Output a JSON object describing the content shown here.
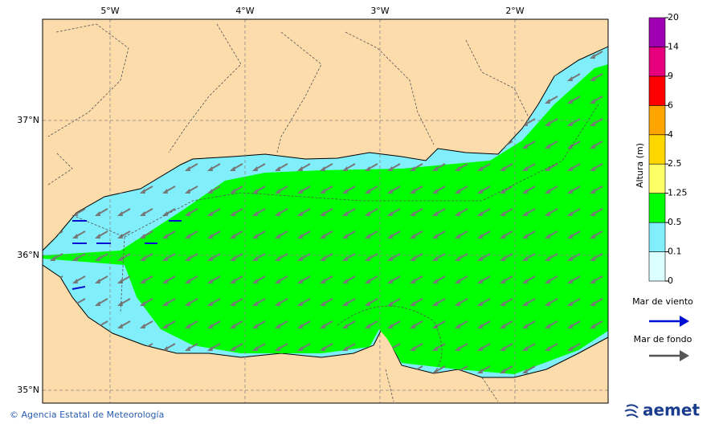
{
  "map": {
    "lon_labels": [
      "5°W",
      "4°W",
      "3°W",
      "2°W"
    ],
    "lat_labels": [
      "37°N",
      "36°N",
      "35°N"
    ]
  },
  "colorbar": {
    "title": "Altura (m)",
    "levels": [
      0,
      0.1,
      0.5,
      1.25,
      2.5,
      4,
      6,
      9,
      14,
      20
    ],
    "colors": [
      "#dcffff",
      "#80eefb",
      "#00ff00",
      "#ffff66",
      "#ffd700",
      "#ffa500",
      "#ff0000",
      "#e6007e",
      "#a000b4"
    ]
  },
  "legend": {
    "wind_sea": "Mar de viento",
    "swell": "Mar de fondo"
  },
  "footer": {
    "credit": "© Agencia Estatal de Meteorología",
    "logo": "aemet"
  }
}
